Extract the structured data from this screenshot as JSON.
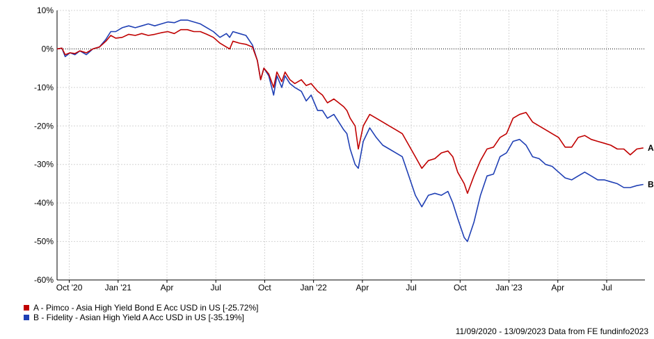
{
  "chart_data": {
    "type": "line",
    "ylim": [
      -60,
      10
    ],
    "y_ticks": [
      10,
      0,
      -10,
      -20,
      -30,
      -40,
      -50,
      -60
    ],
    "y_tick_labels": [
      "10%",
      "0%",
      "-10%",
      "-20%",
      "-30%",
      "-40%",
      "-50%",
      "-60%"
    ],
    "x_ticks": [
      "Oct '20",
      "Jan '21",
      "Apr",
      "Jul",
      "Oct",
      "Jan '22",
      "Apr",
      "Jul",
      "Oct",
      "Jan '23",
      "Apr",
      "Jul"
    ],
    "x_range_months": [
      0,
      36.1
    ],
    "grid": true,
    "zero_line": "dotted",
    "series": [
      {
        "name": "A - Pimco - Asia High Yield Bond E Acc USD in US [-25.72%]",
        "end_label": "A",
        "color": "#c00000",
        "x": [
          0,
          0.3,
          0.5,
          0.8,
          1.1,
          1.4,
          1.8,
          2.2,
          2.6,
          3.0,
          3.3,
          3.6,
          4.0,
          4.4,
          4.8,
          5.2,
          5.6,
          6.0,
          6.4,
          6.8,
          7.2,
          7.6,
          8.0,
          8.4,
          8.8,
          9.2,
          9.6,
          10.0,
          10.4,
          10.6,
          10.8,
          11.2,
          11.6,
          12.0,
          12.3,
          12.5,
          12.7,
          13.0,
          13.3,
          13.5,
          13.8,
          14.0,
          14.3,
          14.6,
          15.0,
          15.3,
          15.6,
          16.0,
          16.3,
          16.6,
          17.0,
          17.3,
          17.6,
          17.8,
          18.0,
          18.3,
          18.5,
          18.8,
          19.2,
          19.6,
          20.0,
          20.4,
          20.8,
          21.2,
          21.6,
          22.0,
          22.4,
          22.8,
          23.2,
          23.6,
          24.0,
          24.3,
          24.6,
          25.0,
          25.2,
          25.6,
          26.0,
          26.4,
          26.8,
          27.2,
          27.6,
          28.0,
          28.4,
          28.8,
          29.2,
          29.6,
          30.0,
          30.4,
          30.8,
          31.2,
          31.6,
          32.0,
          32.4,
          32.8,
          33.2,
          33.6,
          34.0,
          34.4,
          34.8,
          35.2,
          35.6,
          36.0
        ],
        "values": [
          0,
          0.2,
          -1.5,
          -1.0,
          -1.2,
          -0.5,
          -1.0,
          0.0,
          0.5,
          2.0,
          3.5,
          2.8,
          3.0,
          3.8,
          3.5,
          4.0,
          3.5,
          3.8,
          4.2,
          4.5,
          4.0,
          5.0,
          5.0,
          4.5,
          4.5,
          3.8,
          3.0,
          1.5,
          0.5,
          0.0,
          2.0,
          1.5,
          1.2,
          0.5,
          -3.0,
          -8.0,
          -5.0,
          -6.5,
          -10.0,
          -6.0,
          -8.5,
          -6.0,
          -8.0,
          -9.0,
          -8.0,
          -9.5,
          -9.0,
          -11.0,
          -12.0,
          -14.0,
          -13.0,
          -14.0,
          -15.0,
          -16.0,
          -18.0,
          -20.0,
          -26.0,
          -20.0,
          -17.0,
          -18.0,
          -19.0,
          -20.0,
          -21.0,
          -22.0,
          -25.0,
          -28.0,
          -31.0,
          -29.0,
          -28.5,
          -27.0,
          -26.5,
          -28.0,
          -32.0,
          -35.0,
          -37.5,
          -33.0,
          -29.0,
          -26.0,
          -25.5,
          -23.0,
          -22.0,
          -18.0,
          -17.0,
          -16.5,
          -19.0,
          -20.0,
          -21.0,
          -22.0,
          -23.0,
          -25.5,
          -25.5,
          -23.0,
          -22.5,
          -23.5,
          -24.0,
          -24.5,
          -25.0,
          -26.0,
          -26.0,
          -27.5,
          -26.0,
          -25.7
        ]
      },
      {
        "name": "B - Fidelity - Asian High Yield A Acc USD in US [-35.19%]",
        "end_label": "B",
        "color": "#1f3fb4",
        "x": [
          0,
          0.3,
          0.5,
          0.8,
          1.1,
          1.4,
          1.8,
          2.2,
          2.6,
          3.0,
          3.3,
          3.6,
          4.0,
          4.4,
          4.8,
          5.2,
          5.6,
          6.0,
          6.4,
          6.8,
          7.2,
          7.6,
          8.0,
          8.4,
          8.8,
          9.2,
          9.6,
          10.0,
          10.4,
          10.6,
          10.8,
          11.2,
          11.6,
          12.0,
          12.3,
          12.5,
          12.7,
          13.0,
          13.3,
          13.5,
          13.8,
          14.0,
          14.3,
          14.6,
          15.0,
          15.3,
          15.6,
          16.0,
          16.3,
          16.6,
          17.0,
          17.3,
          17.6,
          17.8,
          18.0,
          18.3,
          18.5,
          18.8,
          19.2,
          19.6,
          20.0,
          20.4,
          20.8,
          21.2,
          21.6,
          22.0,
          22.4,
          22.8,
          23.2,
          23.6,
          24.0,
          24.3,
          24.6,
          25.0,
          25.2,
          25.6,
          26.0,
          26.4,
          26.8,
          27.2,
          27.6,
          28.0,
          28.4,
          28.8,
          29.2,
          29.6,
          30.0,
          30.4,
          30.8,
          31.2,
          31.6,
          32.0,
          32.4,
          32.8,
          33.2,
          33.6,
          34.0,
          34.4,
          34.8,
          35.2,
          35.6,
          36.0
        ],
        "values": [
          0,
          0.2,
          -2.0,
          -1.0,
          -1.5,
          -0.5,
          -1.5,
          0.0,
          0.5,
          2.5,
          4.5,
          4.5,
          5.5,
          6.0,
          5.5,
          6.0,
          6.5,
          6.0,
          6.5,
          7.0,
          6.8,
          7.5,
          7.5,
          7.0,
          6.5,
          5.5,
          4.5,
          3.0,
          4.0,
          3.0,
          4.5,
          4.0,
          3.5,
          1.0,
          -3.0,
          -8.0,
          -5.0,
          -7.0,
          -12.0,
          -7.0,
          -10.0,
          -7.0,
          -9.0,
          -10.0,
          -11.0,
          -13.5,
          -12.0,
          -16.0,
          -16.0,
          -18.0,
          -17.0,
          -19.0,
          -21.0,
          -22.0,
          -26.0,
          -30.0,
          -31.0,
          -24.0,
          -20.5,
          -23.0,
          -25.0,
          -26.0,
          -27.0,
          -28.0,
          -33.0,
          -38.0,
          -41.0,
          -38.0,
          -37.5,
          -38.0,
          -37.0,
          -40.0,
          -44.0,
          -49.0,
          -50.0,
          -45.0,
          -38.0,
          -33.0,
          -32.5,
          -28.0,
          -27.0,
          -24.0,
          -23.5,
          -25.0,
          -28.0,
          -28.5,
          -30.0,
          -30.5,
          -32.0,
          -33.5,
          -34.0,
          -33.0,
          -32.0,
          -33.0,
          -34.0,
          -34.0,
          -34.5,
          -35.0,
          -36.0,
          -36.0,
          -35.5,
          -35.2
        ]
      }
    ]
  },
  "legend": {
    "items": [
      {
        "label": "A - Pimco - Asia High Yield Bond E Acc USD in US [-25.72%]",
        "color": "#c00000"
      },
      {
        "label": "B - Fidelity - Asian High Yield A Acc USD in US [-35.19%]",
        "color": "#1f3fb4"
      }
    ]
  },
  "footer": {
    "text": "11/09/2020 - 13/09/2023 Data from FE fundinfo2023"
  }
}
